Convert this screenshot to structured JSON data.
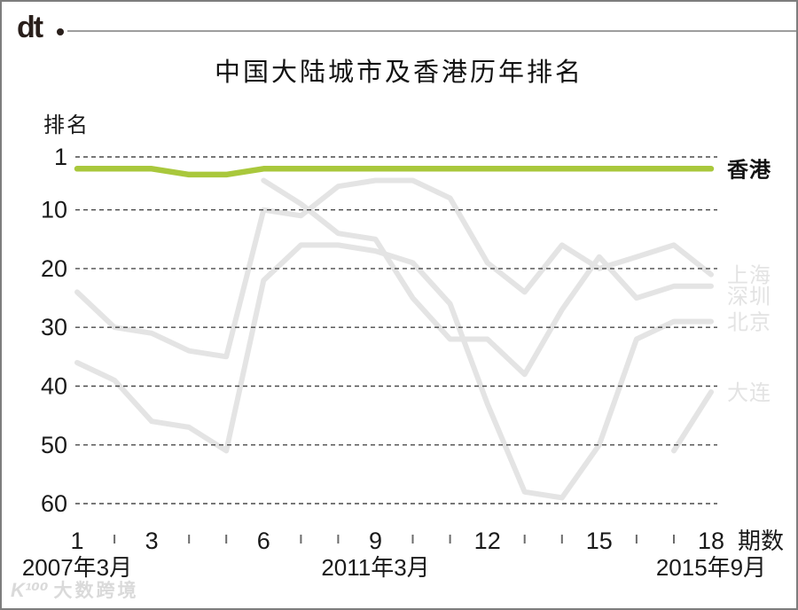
{
  "header": {
    "logo": "dt"
  },
  "title": "中国大陆城市及香港历年排名",
  "watermark": {
    "logo": "K¹⁰⁰",
    "text": "大数跨境"
  },
  "chart_data": {
    "type": "line",
    "title": "中国大陆城市及香港历年排名",
    "xlabel": "期数",
    "ylabel": "排名",
    "x": [
      1,
      2,
      3,
      4,
      5,
      6,
      7,
      8,
      9,
      10,
      11,
      12,
      13,
      14,
      15,
      16,
      17,
      18
    ],
    "x_labeled_ticks": [
      1,
      3,
      6,
      9,
      12,
      15,
      18
    ],
    "x_annotations": [
      {
        "x": 1,
        "label": "2007年3月"
      },
      {
        "x": 9,
        "label": "2011年3月"
      },
      {
        "x": 18,
        "label": "2015年9月"
      }
    ],
    "y_ticks": [
      1,
      10,
      20,
      30,
      40,
      50,
      60
    ],
    "y_inverted": true,
    "ylim": [
      1,
      62
    ],
    "grid": "horizontal-dashed",
    "legend_position": "right-of-line-ends",
    "colors": {
      "accent_green": "#a9c83c",
      "series_gray": "#e4e4e4",
      "legend_gray": "#e3e3e3",
      "grid": "#4a4a4a",
      "tick": "#6b6b6b",
      "text": "#1a1a1a"
    },
    "series": [
      {
        "name": "香港",
        "color": "#a9c83c",
        "label_color": "#111111",
        "emphasis": true,
        "values": [
          3,
          3,
          3,
          4,
          4,
          3,
          3,
          3,
          3,
          3,
          3,
          3,
          3,
          3,
          3,
          3,
          3,
          3
        ]
      },
      {
        "name": "上海",
        "color": "#e4e4e4",
        "label_color": "#e3e3e3",
        "emphasis": false,
        "values": [
          24,
          30,
          31,
          34,
          35,
          10,
          11,
          6,
          5,
          5,
          8,
          19,
          24,
          16,
          20,
          18,
          16,
          21
        ]
      },
      {
        "name": "深圳",
        "color": "#e4e4e4",
        "label_color": "#e3e3e3",
        "emphasis": false,
        "values": [
          null,
          null,
          null,
          null,
          null,
          5,
          9,
          14,
          15,
          25,
          32,
          32,
          38,
          27,
          18,
          25,
          23,
          23
        ]
      },
      {
        "name": "北京",
        "color": "#e4e4e4",
        "label_color": "#e3e3e3",
        "emphasis": false,
        "values": [
          36,
          39,
          46,
          47,
          51,
          22,
          16,
          16,
          17,
          19,
          26,
          43,
          58,
          59,
          50,
          32,
          29,
          29
        ]
      },
      {
        "name": "大连",
        "color": "#e4e4e4",
        "label_color": "#e3e3e3",
        "emphasis": false,
        "values": [
          null,
          null,
          null,
          null,
          null,
          null,
          null,
          null,
          null,
          null,
          null,
          null,
          null,
          null,
          null,
          null,
          51,
          41
        ]
      }
    ]
  }
}
